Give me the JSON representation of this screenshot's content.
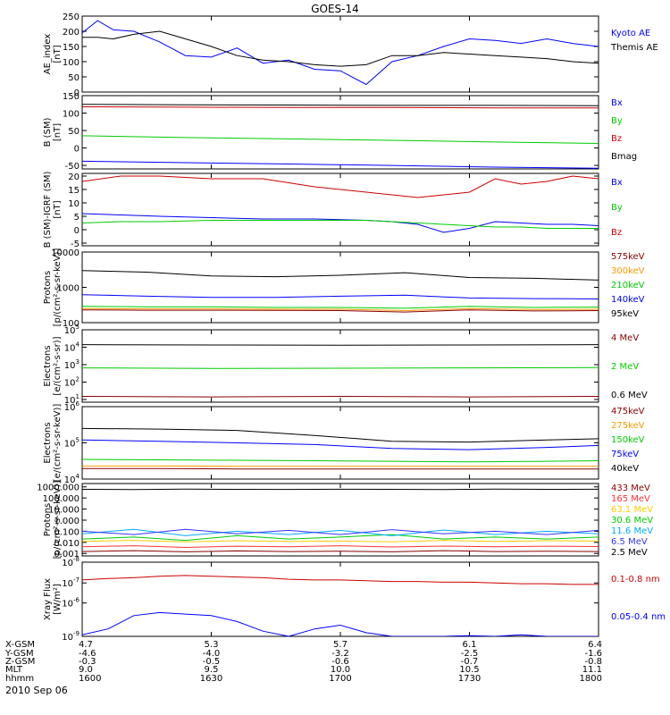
{
  "title": "GOES-14",
  "date_label": "2010 Sep 06",
  "xaxis": {
    "row_labels": [
      "X-GSM",
      "Y-GSM",
      "Z-GSM",
      "MLT",
      "hhmm"
    ],
    "ticks": [
      {
        "values": [
          "4.7",
          "-4.6",
          "-0.3",
          "9.0",
          "1600"
        ]
      },
      {
        "values": [
          "5.3",
          "-4.0",
          "-0.5",
          "9.5",
          "1630"
        ]
      },
      {
        "values": [
          "5.7",
          "-3.2",
          "-0.6",
          "10.0",
          "1700"
        ]
      },
      {
        "values": [
          "6.1",
          "-2.5",
          "-0.7",
          "10.5",
          "1730"
        ]
      },
      {
        "values": [
          "6.4",
          "-1.6",
          "-0.8",
          "11.1",
          "1800"
        ]
      }
    ]
  },
  "chart_data": [
    {
      "type": "line",
      "id": "ae",
      "ylabel": [
        "AE_index",
        "[nT]"
      ],
      "scale": "linear",
      "ylim": [
        0,
        250
      ],
      "ticks": [
        {
          "v": 0,
          "label": "0"
        },
        {
          "v": 50,
          "label": "50"
        },
        {
          "v": 100,
          "label": "100"
        },
        {
          "v": 150,
          "label": "150"
        },
        {
          "v": 200,
          "label": "200"
        },
        {
          "v": 250,
          "label": "250"
        }
      ],
      "x": [
        0,
        6,
        12,
        20,
        30,
        40,
        50,
        60,
        70,
        80,
        90,
        100,
        110,
        120,
        130,
        140,
        150,
        160,
        170,
        180,
        190,
        200
      ],
      "series": [
        {
          "name": "Kyoto AE",
          "color": "#0000ff",
          "values": [
            195,
            235,
            205,
            200,
            165,
            120,
            115,
            145,
            95,
            105,
            75,
            70,
            25,
            100,
            120,
            150,
            175,
            170,
            160,
            175,
            160,
            150
          ]
        },
        {
          "name": "Themis AE",
          "color": "#000000",
          "values": [
            180,
            180,
            175,
            190,
            200,
            175,
            150,
            120,
            105,
            100,
            90,
            85,
            90,
            120,
            120,
            130,
            125,
            120,
            115,
            110,
            100,
            95
          ]
        }
      ]
    },
    {
      "type": "line",
      "id": "bsm",
      "ylabel": [
        "B (SM)",
        "[nT]"
      ],
      "scale": "linear",
      "ylim": [
        -60,
        150
      ],
      "ticks": [
        {
          "v": -50,
          "label": "-50"
        },
        {
          "v": 0,
          "label": "0"
        },
        {
          "v": 50,
          "label": "50"
        },
        {
          "v": 100,
          "label": "100"
        },
        {
          "v": 150,
          "label": "150"
        }
      ],
      "x": [
        0,
        40,
        80,
        120,
        160,
        200
      ],
      "series": [
        {
          "name": "Bx",
          "color": "#0000ff",
          "values": [
            -38,
            -42,
            -46,
            -50,
            -55,
            -58
          ]
        },
        {
          "name": "By",
          "color": "#00cc00",
          "values": [
            35,
            30,
            26,
            22,
            17,
            13
          ]
        },
        {
          "name": "Bz",
          "color": "#cc0000",
          "values": [
            118,
            117,
            116,
            116,
            115,
            115
          ]
        },
        {
          "name": "Bmag",
          "color": "#000000",
          "values": [
            125,
            124,
            123,
            122,
            122,
            121
          ]
        }
      ]
    },
    {
      "type": "line",
      "id": "bigrf",
      "ylabel": [
        "B (SM)-IGRF (SM)",
        "[nT]"
      ],
      "scale": "linear",
      "ylim": [
        -6,
        21
      ],
      "ticks": [
        {
          "v": -5,
          "label": "-5"
        },
        {
          "v": 0,
          "label": "0"
        },
        {
          "v": 5,
          "label": "5"
        },
        {
          "v": 10,
          "label": "10"
        },
        {
          "v": 15,
          "label": "15"
        },
        {
          "v": 20,
          "label": "20"
        }
      ],
      "x": [
        0,
        15,
        30,
        50,
        70,
        90,
        110,
        120,
        130,
        140,
        150,
        160,
        170,
        180,
        190,
        200
      ],
      "series": [
        {
          "name": "Bx",
          "color": "#0000ff",
          "values": [
            6,
            5.5,
            5,
            4.5,
            4,
            4,
            3.5,
            3,
            2,
            -1,
            0.5,
            3,
            2.5,
            2,
            2,
            1.5
          ]
        },
        {
          "name": "By",
          "color": "#00cc00",
          "values": [
            2.5,
            3,
            3,
            3.5,
            3.5,
            3.5,
            3.5,
            3,
            2.5,
            2,
            1.5,
            1,
            1,
            0.5,
            0.5,
            0.5
          ]
        },
        {
          "name": "Bz",
          "color": "#cc0000",
          "values": [
            18,
            20,
            20,
            19,
            19,
            16,
            14,
            13,
            12,
            13,
            14,
            19,
            17,
            18,
            20,
            19
          ]
        }
      ]
    },
    {
      "type": "line",
      "id": "protons",
      "ylabel": [
        "Protons",
        "[p/(cm²-s-sr-keV)]"
      ],
      "scale": "log",
      "ylim": [
        100,
        10000
      ],
      "ticks": [
        {
          "v": 100,
          "label": "100"
        },
        {
          "v": 1000,
          "label": "1000"
        },
        {
          "v": 10000,
          "label": "10000"
        }
      ],
      "x": [
        0,
        25,
        50,
        75,
        100,
        125,
        150,
        175,
        200
      ],
      "series": [
        {
          "name": "575keV",
          "color": "#880000",
          "values": [
            230,
            225,
            225,
            222,
            220,
            200,
            230,
            215,
            220
          ]
        },
        {
          "name": "300keV",
          "color": "#ff9900",
          "values": [
            250,
            245,
            245,
            240,
            240,
            220,
            250,
            235,
            240
          ]
        },
        {
          "name": "210keV",
          "color": "#00cc00",
          "values": [
            290,
            280,
            280,
            270,
            270,
            255,
            290,
            270,
            275
          ]
        },
        {
          "name": "140keV",
          "color": "#0000ff",
          "values": [
            620,
            560,
            520,
            520,
            560,
            600,
            500,
            480,
            470
          ]
        },
        {
          "name": "95keV",
          "color": "#000000",
          "values": [
            3000,
            2700,
            2100,
            2000,
            2200,
            2600,
            1900,
            1800,
            1600
          ]
        }
      ]
    },
    {
      "type": "line",
      "id": "electrons1",
      "ylabel": [
        "Electrons",
        "[e/(cm²-s-sr)]"
      ],
      "scale": "log",
      "ylim": [
        7,
        100000
      ],
      "ticks": [
        {
          "v": 10,
          "label": "10",
          "exp": "1"
        },
        {
          "v": 100,
          "label": "10",
          "exp": "2"
        },
        {
          "v": 1000,
          "label": "10",
          "exp": "3"
        },
        {
          "v": 10000,
          "label": "10",
          "exp": "4"
        },
        {
          "v": 100000,
          "label": "10",
          "exp": "5"
        }
      ],
      "x": [
        0,
        50,
        100,
        150,
        200
      ],
      "series": [
        {
          "name": "4 MeV",
          "color": "#880000",
          "values": [
            15,
            14,
            15,
            14,
            15
          ]
        },
        {
          "name": "2 MeV",
          "color": "#00cc00",
          "values": [
            650,
            600,
            620,
            650,
            680
          ]
        },
        {
          "name": "0.6 MeV",
          "color": "#000000",
          "values": [
            14000,
            13500,
            13000,
            13500,
            14000
          ]
        }
      ]
    },
    {
      "type": "line",
      "id": "electrons2",
      "ylabel": [
        "Electrons",
        "[e/(cm²-s-sr-keV)]"
      ],
      "scale": "log",
      "ylim": [
        10000,
        1000000
      ],
      "ticks": [
        {
          "v": 10000,
          "label": "10",
          "exp": "4"
        },
        {
          "v": 100000,
          "label": "10",
          "exp": "5"
        },
        {
          "v": 1000000,
          "label": "10",
          "exp": "6"
        }
      ],
      "x": [
        0,
        30,
        60,
        90,
        120,
        150,
        180,
        200
      ],
      "series": [
        {
          "name": "475keV",
          "color": "#880000",
          "values": [
            19500,
            19500,
            19000,
            19000,
            19000,
            19000,
            19000,
            19000
          ]
        },
        {
          "name": "275keV",
          "color": "#ff9900",
          "values": [
            23000,
            23000,
            22500,
            22500,
            22500,
            22500,
            22500,
            22500
          ]
        },
        {
          "name": "150keV",
          "color": "#00cc00",
          "values": [
            35000,
            34000,
            33000,
            32000,
            31000,
            30000,
            31000,
            32000
          ]
        },
        {
          "name": "75keV",
          "color": "#0000ff",
          "values": [
            120000,
            110000,
            100000,
            90000,
            70000,
            65000,
            75000,
            85000
          ]
        },
        {
          "name": "40keV",
          "color": "#000000",
          "values": [
            250000,
            240000,
            220000,
            160000,
            110000,
            105000,
            120000,
            130000
          ]
        }
      ]
    },
    {
      "type": "line",
      "id": "protons2",
      "ylabel": [
        "Protons",
        "[p/(cm²-s-sr-keV)]"
      ],
      "scale": "log",
      "ylim": [
        0.0006,
        2000
      ],
      "ticks": [
        {
          "v": 0.001,
          "label": "0.001"
        },
        {
          "v": 0.01,
          "label": "0.010"
        },
        {
          "v": 0.1,
          "label": "0.100"
        },
        {
          "v": 1,
          "label": "1.000"
        },
        {
          "v": 10,
          "label": "10.000"
        },
        {
          "v": 100,
          "label": "100.000"
        },
        {
          "v": 1000,
          "label": "1000.000"
        }
      ],
      "x": [
        0,
        20,
        40,
        60,
        80,
        100,
        120,
        140,
        160,
        180,
        200
      ],
      "series": [
        {
          "name": "433 MeV",
          "color": "#880000",
          "values": [
            0.0015,
            0.0018,
            0.0014,
            0.0017,
            0.0015,
            0.0016,
            0.0014,
            0.0018,
            0.0015,
            0.0016,
            0.0015
          ]
        },
        {
          "name": "165 MeV",
          "color": "#ff3333",
          "values": [
            0.004,
            0.005,
            0.0035,
            0.0045,
            0.004,
            0.005,
            0.0038,
            0.0046,
            0.004,
            0.0045,
            0.0042
          ]
        },
        {
          "name": "63.1 MeV",
          "color": "#ffcc00",
          "values": [
            0.012,
            0.015,
            0.011,
            0.014,
            0.012,
            0.013,
            0.011,
            0.015,
            0.012,
            0.014,
            0.013
          ]
        },
        {
          "name": "30.6 MeV",
          "color": "#00cc00",
          "values": [
            0.02,
            0.03,
            0.015,
            0.04,
            0.02,
            0.03,
            0.05,
            0.02,
            0.03,
            0.02,
            0.03
          ]
        },
        {
          "name": "11.6 MeV",
          "color": "#00aaff",
          "values": [
            0.06,
            0.15,
            0.04,
            0.1,
            0.05,
            0.12,
            0.04,
            0.13,
            0.05,
            0.1,
            0.06
          ]
        },
        {
          "name": "6.5 MeV",
          "color": "#3333ff",
          "values": [
            0.1,
            0.05,
            0.15,
            0.06,
            0.12,
            0.05,
            0.14,
            0.06,
            0.1,
            0.05,
            0.12
          ]
        },
        {
          "name": "2.5 MeV",
          "color": "#000000",
          "values": [
            600,
            580,
            620,
            600,
            590,
            610,
            600,
            580,
            620,
            600,
            610
          ]
        }
      ]
    },
    {
      "type": "line",
      "id": "xray",
      "ylabel": [
        "Xray Flux",
        "[W/m²]"
      ],
      "scale": "log",
      "ylim": [
        8e-10,
        1e-08
      ],
      "ticks": [
        {
          "v": 1e-09,
          "label": "10",
          "exp": "-9"
        },
        {
          "v": 1e-08,
          "label": "10",
          "exp": "-8"
        }
      ],
      "tick_positions": [
        {
          "label": "10",
          "exp": "-9",
          "frac": 1.0
        },
        {
          "label": "10",
          "exp": "-6",
          "frac": 0.55
        },
        {
          "label": "10",
          "exp": "-7",
          "frac": 0.28
        },
        {
          "label": "10",
          "exp": "-8",
          "frac": 0.0
        }
      ],
      "x": [
        0,
        10,
        20,
        30,
        40,
        50,
        60,
        70,
        80,
        90,
        100,
        110,
        120,
        130,
        140,
        150,
        160,
        170,
        180,
        190,
        200
      ],
      "series": [
        {
          "name": "0.1-0.8 nm",
          "color": "#cc0000",
          "frac": [
            0.24,
            0.22,
            0.21,
            0.19,
            0.18,
            0.19,
            0.2,
            0.21,
            0.23,
            0.24,
            0.24,
            0.25,
            0.26,
            0.26,
            0.27,
            0.27,
            0.28,
            0.29,
            0.29,
            0.3,
            0.3
          ]
        },
        {
          "name": "0.05-0.4 nm",
          "color": "#0000ff",
          "frac": [
            0.98,
            0.9,
            0.72,
            0.68,
            0.7,
            0.72,
            0.8,
            0.93,
            1.0,
            0.9,
            0.85,
            0.95,
            1.0,
            1.0,
            1.0,
            0.99,
            1.0,
            0.98,
            1.0,
            1.0,
            1.0
          ]
        }
      ]
    }
  ]
}
